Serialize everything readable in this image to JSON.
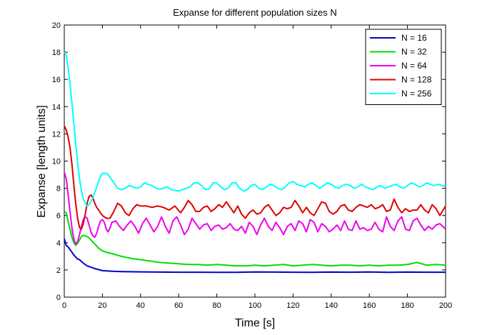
{
  "chart_data": {
    "type": "line",
    "title": "Expanse for different population sizes N",
    "xlabel": "Time [s]",
    "ylabel": "Expanse [length units]",
    "xlim": [
      0,
      200
    ],
    "ylim": [
      0,
      20
    ],
    "xticks": [
      0,
      20,
      40,
      60,
      80,
      100,
      120,
      140,
      160,
      180,
      200
    ],
    "yticks": [
      0,
      2,
      4,
      6,
      8,
      10,
      12,
      14,
      16,
      18,
      20
    ],
    "grid": false,
    "legend_position": "top-right",
    "series": [
      {
        "name": "N = 16",
        "color": "#0000cc",
        "x": [
          0,
          1,
          2,
          3,
          4,
          5,
          6,
          7,
          8,
          10,
          12,
          14,
          16,
          20,
          25,
          30,
          40,
          50,
          60,
          70,
          80,
          90,
          100,
          110,
          120,
          130,
          140,
          150,
          160,
          170,
          180,
          190,
          200
        ],
        "y": [
          4.3,
          3.8,
          3.7,
          3.5,
          3.3,
          3.1,
          2.95,
          2.8,
          2.75,
          2.5,
          2.3,
          2.2,
          2.1,
          1.95,
          1.9,
          1.88,
          1.86,
          1.84,
          1.83,
          1.83,
          1.82,
          1.82,
          1.85,
          1.84,
          1.83,
          1.82,
          1.84,
          1.83,
          1.85,
          1.82,
          1.84,
          1.83,
          1.83
        ]
      },
      {
        "name": "N = 32",
        "color": "#00dd00",
        "x": [
          0,
          1,
          2,
          3,
          4,
          5,
          6,
          7,
          8,
          9,
          10,
          11,
          12,
          13,
          14,
          16,
          18,
          20,
          22,
          25,
          30,
          35,
          40,
          45,
          50,
          55,
          60,
          65,
          70,
          75,
          80,
          85,
          90,
          95,
          100,
          105,
          110,
          115,
          120,
          125,
          130,
          135,
          140,
          145,
          150,
          155,
          160,
          165,
          170,
          175,
          180,
          185,
          190,
          195,
          200
        ],
        "y": [
          6.3,
          6.2,
          5.6,
          5.0,
          4.4,
          4.0,
          3.8,
          3.95,
          4.2,
          4.45,
          4.55,
          4.5,
          4.45,
          4.35,
          4.2,
          3.9,
          3.6,
          3.4,
          3.3,
          3.2,
          3.0,
          2.85,
          2.75,
          2.65,
          2.55,
          2.5,
          2.45,
          2.4,
          2.4,
          2.35,
          2.4,
          2.35,
          2.3,
          2.3,
          2.35,
          2.3,
          2.35,
          2.4,
          2.3,
          2.35,
          2.4,
          2.35,
          2.3,
          2.35,
          2.35,
          2.3,
          2.35,
          2.3,
          2.35,
          2.35,
          2.4,
          2.55,
          2.35,
          2.4,
          2.35
        ]
      },
      {
        "name": "N = 64",
        "color": "#ee00ee",
        "x": [
          0,
          1,
          2,
          3,
          4,
          5,
          6,
          7,
          8,
          9,
          10,
          11,
          12,
          13,
          14,
          15,
          16,
          17,
          18,
          19,
          20,
          21,
          22,
          23,
          24,
          25,
          27,
          29,
          31,
          33,
          35,
          37,
          39,
          41,
          43,
          45,
          47,
          49,
          51,
          53,
          55,
          57,
          59,
          61,
          63,
          65,
          67,
          69,
          71,
          73,
          75,
          77,
          79,
          81,
          83,
          85,
          87,
          89,
          91,
          93,
          95,
          97,
          99,
          101,
          103,
          105,
          107,
          109,
          111,
          113,
          115,
          117,
          119,
          121,
          123,
          125,
          127,
          129,
          131,
          133,
          135,
          137,
          139,
          141,
          143,
          145,
          147,
          149,
          151,
          153,
          155,
          157,
          159,
          161,
          163,
          165,
          167,
          169,
          171,
          173,
          175,
          177,
          179,
          181,
          183,
          185,
          187,
          189,
          191,
          193,
          195,
          197,
          200
        ],
        "y": [
          9.2,
          8.7,
          7.6,
          6.3,
          5.1,
          4.3,
          3.9,
          4.1,
          4.6,
          5.2,
          5.7,
          5.9,
          5.8,
          5.3,
          4.8,
          4.5,
          4.4,
          4.7,
          5.2,
          5.6,
          5.7,
          5.5,
          5.0,
          4.8,
          5.1,
          5.5,
          5.6,
          5.2,
          4.9,
          5.3,
          5.6,
          5.2,
          4.7,
          5.4,
          5.8,
          5.3,
          4.8,
          5.2,
          5.9,
          5.2,
          4.7,
          5.6,
          5.9,
          5.3,
          4.6,
          5.0,
          5.8,
          5.4,
          5.0,
          5.3,
          5.4,
          4.9,
          5.2,
          5.3,
          5.0,
          5.1,
          5.4,
          5.0,
          4.9,
          5.2,
          4.7,
          5.5,
          5.2,
          4.6,
          5.3,
          5.8,
          5.2,
          4.9,
          5.5,
          5.1,
          4.6,
          5.2,
          5.4,
          4.9,
          5.6,
          5.4,
          4.8,
          5.7,
          5.5,
          4.8,
          5.4,
          5.2,
          4.8,
          5.0,
          5.3,
          4.9,
          5.6,
          5.0,
          4.9,
          5.6,
          5.0,
          5.1,
          4.9,
          5.0,
          5.5,
          5.0,
          4.8,
          5.9,
          5.2,
          4.9,
          5.6,
          5.9,
          5.0,
          4.9,
          5.6,
          5.8,
          5.3,
          4.9,
          5.2,
          5.0,
          5.3,
          5.4,
          5.0
        ]
      },
      {
        "name": "N = 128",
        "color": "#dd0000",
        "x": [
          0,
          1,
          2,
          3,
          4,
          5,
          6,
          7,
          8,
          9,
          10,
          11,
          12,
          13,
          14,
          15,
          16,
          17,
          18,
          19,
          20,
          22,
          24,
          26,
          28,
          30,
          32,
          34,
          36,
          38,
          40,
          43,
          46,
          49,
          52,
          55,
          58,
          61,
          63,
          65,
          67,
          69,
          71,
          73,
          75,
          77,
          79,
          81,
          83,
          85,
          87,
          89,
          91,
          93,
          95,
          97,
          99,
          101,
          103,
          105,
          107,
          109,
          111,
          113,
          115,
          117,
          119,
          121,
          123,
          125,
          127,
          129,
          131,
          133,
          135,
          137,
          139,
          141,
          143,
          145,
          147,
          149,
          151,
          153,
          155,
          157,
          159,
          161,
          163,
          165,
          167,
          169,
          171,
          173,
          175,
          177,
          179,
          181,
          183,
          185,
          187,
          189,
          191,
          193,
          195,
          197,
          200
        ],
        "y": [
          12.6,
          12.3,
          11.8,
          11.0,
          9.8,
          8.3,
          6.9,
          5.8,
          5.1,
          5.0,
          5.4,
          6.1,
          6.9,
          7.4,
          7.5,
          7.3,
          6.9,
          6.6,
          6.4,
          6.2,
          6.0,
          5.8,
          5.8,
          6.3,
          6.9,
          6.7,
          6.2,
          6.0,
          6.5,
          6.8,
          6.7,
          6.7,
          6.6,
          6.7,
          6.6,
          6.4,
          6.7,
          6.2,
          6.6,
          7.1,
          6.8,
          6.3,
          6.3,
          6.6,
          6.7,
          6.3,
          6.5,
          6.8,
          6.6,
          7.0,
          6.6,
          6.2,
          6.7,
          6.1,
          5.8,
          6.2,
          6.4,
          6.1,
          6.2,
          6.6,
          6.8,
          6.4,
          6.0,
          6.2,
          6.6,
          6.5,
          6.6,
          7.1,
          6.7,
          6.2,
          6.6,
          6.2,
          6.0,
          6.5,
          7.0,
          6.9,
          6.3,
          6.1,
          6.3,
          6.7,
          6.8,
          6.4,
          6.3,
          6.6,
          6.8,
          6.7,
          6.6,
          6.8,
          6.5,
          6.6,
          6.8,
          6.3,
          6.4,
          7.2,
          6.6,
          6.2,
          6.5,
          6.3,
          6.4,
          6.4,
          6.8,
          6.4,
          6.2,
          6.8,
          6.5,
          6.0,
          6.7
        ]
      },
      {
        "name": "N = 256",
        "color": "#00ffff",
        "x": [
          0,
          1,
          2,
          3,
          4,
          5,
          6,
          7,
          8,
          9,
          10,
          11,
          12,
          13,
          14,
          15,
          16,
          17,
          18,
          19,
          20,
          21,
          22,
          23,
          24,
          25,
          26,
          27,
          28,
          29,
          30,
          32,
          34,
          36,
          38,
          40,
          42,
          44,
          46,
          48,
          50,
          52,
          54,
          56,
          58,
          60,
          62,
          64,
          66,
          68,
          70,
          72,
          74,
          76,
          78,
          80,
          82,
          84,
          86,
          88,
          90,
          92,
          94,
          96,
          98,
          100,
          102,
          104,
          106,
          108,
          110,
          112,
          114,
          116,
          118,
          120,
          122,
          124,
          126,
          128,
          130,
          132,
          134,
          136,
          138,
          140,
          142,
          144,
          146,
          148,
          150,
          152,
          154,
          156,
          158,
          160,
          162,
          164,
          166,
          168,
          170,
          172,
          174,
          176,
          178,
          180,
          182,
          184,
          186,
          188,
          190,
          192,
          194,
          196,
          198,
          200
        ],
        "y": [
          18.0,
          17.8,
          16.9,
          15.7,
          14.3,
          12.8,
          11.3,
          9.9,
          8.7,
          7.8,
          7.2,
          6.9,
          6.7,
          6.8,
          7.0,
          7.3,
          7.7,
          8.1,
          8.5,
          8.9,
          9.1,
          9.1,
          9.1,
          9.0,
          8.8,
          8.6,
          8.4,
          8.2,
          8.0,
          7.95,
          7.9,
          8.0,
          8.2,
          8.1,
          8.0,
          8.1,
          8.4,
          8.3,
          8.2,
          8.0,
          7.95,
          8.0,
          8.1,
          7.9,
          7.85,
          7.8,
          7.9,
          8.0,
          8.1,
          8.4,
          8.4,
          8.2,
          7.9,
          7.95,
          8.4,
          8.4,
          8.1,
          7.9,
          8.0,
          8.4,
          8.4,
          8.0,
          7.8,
          7.9,
          8.2,
          8.3,
          8.0,
          7.9,
          8.1,
          8.3,
          8.2,
          8.0,
          7.9,
          8.1,
          8.4,
          8.5,
          8.3,
          8.2,
          8.1,
          8.3,
          8.4,
          8.2,
          8.0,
          8.2,
          8.4,
          8.3,
          8.1,
          8.0,
          8.2,
          8.3,
          8.2,
          8.0,
          8.1,
          8.3,
          8.1,
          8.0,
          7.9,
          8.1,
          8.2,
          8.0,
          8.1,
          8.2,
          8.3,
          8.1,
          8.0,
          8.2,
          8.4,
          8.3,
          8.1,
          8.2,
          8.4,
          8.3,
          8.2,
          8.3,
          8.2,
          8.15
        ]
      }
    ]
  }
}
